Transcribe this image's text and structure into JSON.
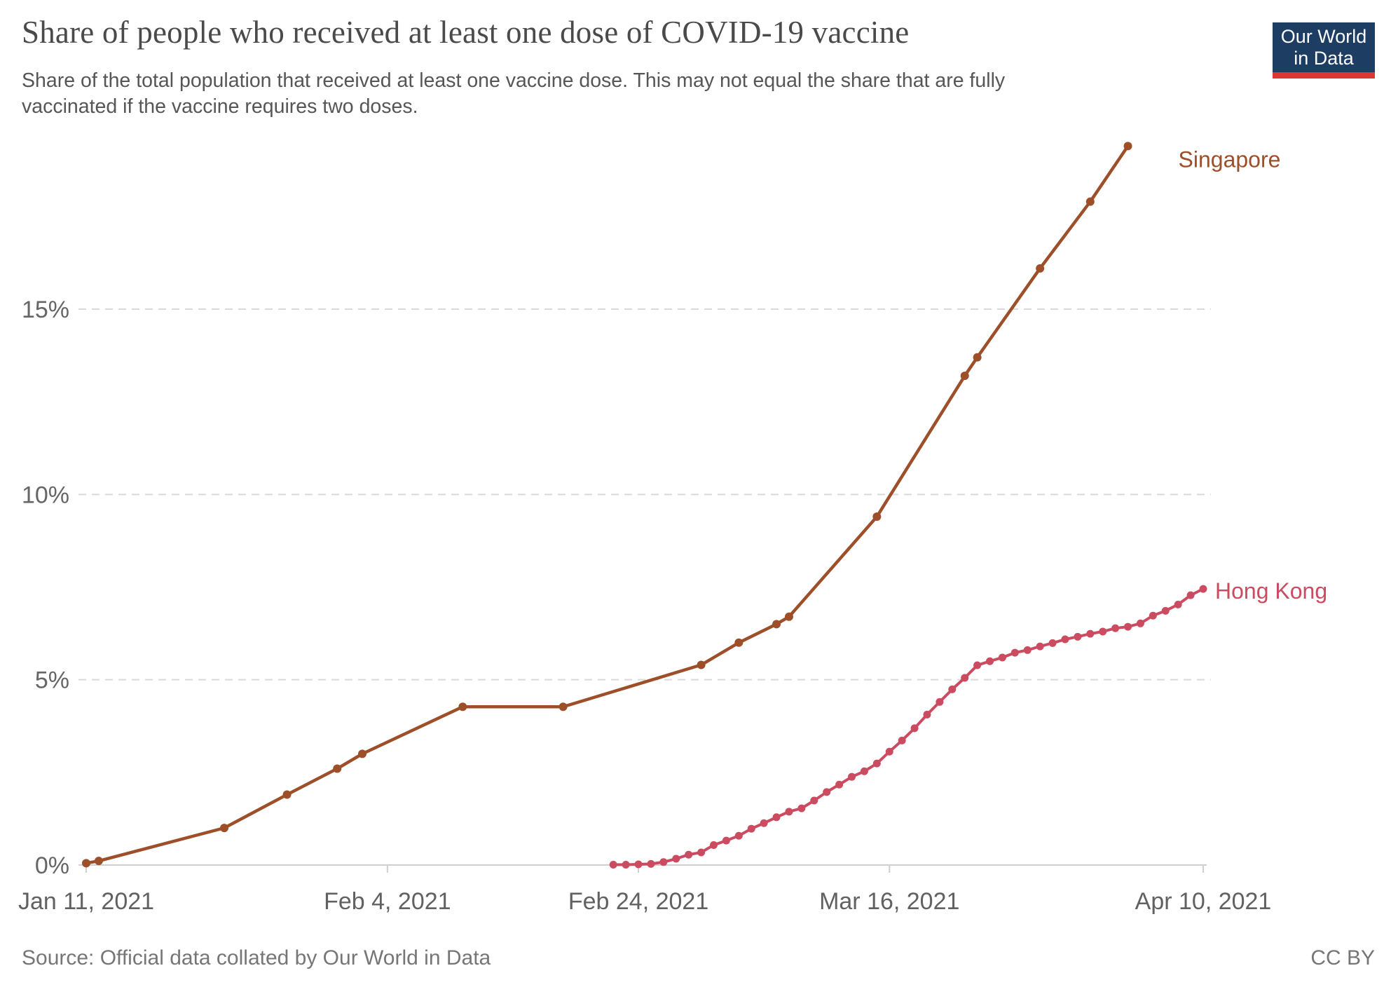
{
  "header": {
    "title": "Share of people who received at least one dose of COVID-19 vaccine",
    "subtitle_line1": "Share of the total population that received at least one vaccine dose. This may not equal the share that are fully",
    "subtitle_line2": "vaccinated if the vaccine requires two doses."
  },
  "logo": {
    "line1": "Our World",
    "line2": "in Data",
    "bg_color": "#1d3d63",
    "accent_color": "#dc3832"
  },
  "footer": {
    "source": "Source: Official data collated by Our World in Data",
    "license": "CC BY"
  },
  "chart_data": {
    "type": "line",
    "title": "Share of people who received at least one dose of COVID-19 vaccine",
    "grid": true,
    "legend_position": "line-end-labels",
    "x_axis": {
      "unit": "date",
      "tick_labels": [
        "Jan 11, 2021",
        "Feb 4, 2021",
        "Feb 24, 2021",
        "Mar 16, 2021",
        "Apr 10, 2021"
      ],
      "tick_day_offsets": [
        0,
        24,
        44,
        64,
        89
      ],
      "domain_day_offsets": [
        0,
        89
      ]
    },
    "y_axis": {
      "unit": "percent",
      "tick_labels": [
        "0%",
        "5%",
        "10%",
        "15%"
      ],
      "tick_values": [
        0,
        5,
        10,
        15
      ],
      "gridline_values": [
        5,
        10,
        15
      ],
      "gridline_style": "dashed",
      "range": [
        0,
        19.4
      ]
    },
    "series": [
      {
        "name": "Hong Kong",
        "color": "#cb4b60",
        "points": [
          [
            "Feb 22, 2021",
            42,
            0.01
          ],
          [
            "Feb 23, 2021",
            43,
            0.01
          ],
          [
            "Feb 24, 2021",
            44,
            0.02
          ],
          [
            "Feb 25, 2021",
            45,
            0.03
          ],
          [
            "Feb 26, 2021",
            46,
            0.08
          ],
          [
            "Feb 27, 2021",
            47,
            0.17
          ],
          [
            "Feb 28, 2021",
            48,
            0.28
          ],
          [
            "Mar 1, 2021",
            49,
            0.34
          ],
          [
            "Mar 2, 2021",
            50,
            0.54
          ],
          [
            "Mar 3, 2021",
            51,
            0.66
          ],
          [
            "Mar 4, 2021",
            52,
            0.79
          ],
          [
            "Mar 5, 2021",
            53,
            0.98
          ],
          [
            "Mar 6, 2021",
            54,
            1.13
          ],
          [
            "Mar 7, 2021",
            55,
            1.29
          ],
          [
            "Mar 8, 2021",
            56,
            1.44
          ],
          [
            "Mar 9, 2021",
            57,
            1.53
          ],
          [
            "Mar 10, 2021",
            58,
            1.74
          ],
          [
            "Mar 11, 2021",
            59,
            1.97
          ],
          [
            "Mar 12, 2021",
            60,
            2.17
          ],
          [
            "Mar 13, 2021",
            61,
            2.38
          ],
          [
            "Mar 14, 2021",
            62,
            2.53
          ],
          [
            "Mar 15, 2021",
            63,
            2.74
          ],
          [
            "Mar 16, 2021",
            64,
            3.06
          ],
          [
            "Mar 17, 2021",
            65,
            3.36
          ],
          [
            "Mar 18, 2021",
            66,
            3.69
          ],
          [
            "Mar 19, 2021",
            67,
            4.06
          ],
          [
            "Mar 20, 2021",
            68,
            4.4
          ],
          [
            "Mar 21, 2021",
            69,
            4.74
          ],
          [
            "Mar 22, 2021",
            70,
            5.05
          ],
          [
            "Mar 23, 2021",
            71,
            5.39
          ],
          [
            "Mar 24, 2021",
            72,
            5.5
          ],
          [
            "Mar 25, 2021",
            73,
            5.6
          ],
          [
            "Mar 26, 2021",
            74,
            5.73
          ],
          [
            "Mar 27, 2021",
            75,
            5.8
          ],
          [
            "Mar 28, 2021",
            76,
            5.9
          ],
          [
            "Mar 29, 2021",
            77,
            5.99
          ],
          [
            "Mar 30, 2021",
            78,
            6.09
          ],
          [
            "Mar 31, 2021",
            79,
            6.16
          ],
          [
            "Apr 1, 2021",
            80,
            6.24
          ],
          [
            "Apr 2, 2021",
            81,
            6.3
          ],
          [
            "Apr 3, 2021",
            82,
            6.39
          ],
          [
            "Apr 4, 2021",
            83,
            6.43
          ],
          [
            "Apr 5, 2021",
            84,
            6.52
          ],
          [
            "Apr 6, 2021",
            85,
            6.73
          ],
          [
            "Apr 7, 2021",
            86,
            6.86
          ],
          [
            "Apr 8, 2021",
            87,
            7.03
          ],
          [
            "Apr 9, 2021",
            88,
            7.28
          ],
          [
            "Apr 10, 2021",
            89,
            7.45
          ]
        ]
      },
      {
        "name": "Singapore",
        "color": "#9d4f2a",
        "points": [
          [
            "Jan 11, 2021",
            0,
            0.05
          ],
          [
            "Jan 12, 2021",
            1,
            0.11
          ],
          [
            "Jan 22, 2021",
            11,
            1.0
          ],
          [
            "Jan 27, 2021",
            16,
            1.9
          ],
          [
            "Jan 31, 2021",
            20,
            2.6
          ],
          [
            "Feb 2, 2021",
            22,
            3.0
          ],
          [
            "Feb 10, 2021",
            30,
            4.27
          ],
          [
            "Feb 18, 2021",
            38,
            4.27
          ],
          [
            "Mar 1, 2021",
            49,
            5.4
          ],
          [
            "Mar 4, 2021",
            52,
            6.0
          ],
          [
            "Mar 7, 2021",
            55,
            6.5
          ],
          [
            "Mar 8, 2021",
            56,
            6.7
          ],
          [
            "Mar 15, 2021",
            63,
            9.4
          ],
          [
            "Mar 22, 2021",
            70,
            13.2
          ],
          [
            "Mar 23, 2021",
            71,
            13.7
          ],
          [
            "Mar 28, 2021",
            76,
            16.1
          ],
          [
            "Apr 1, 2021",
            80,
            17.9
          ],
          [
            "Apr 4, 2021",
            83,
            19.4
          ]
        ]
      }
    ]
  }
}
